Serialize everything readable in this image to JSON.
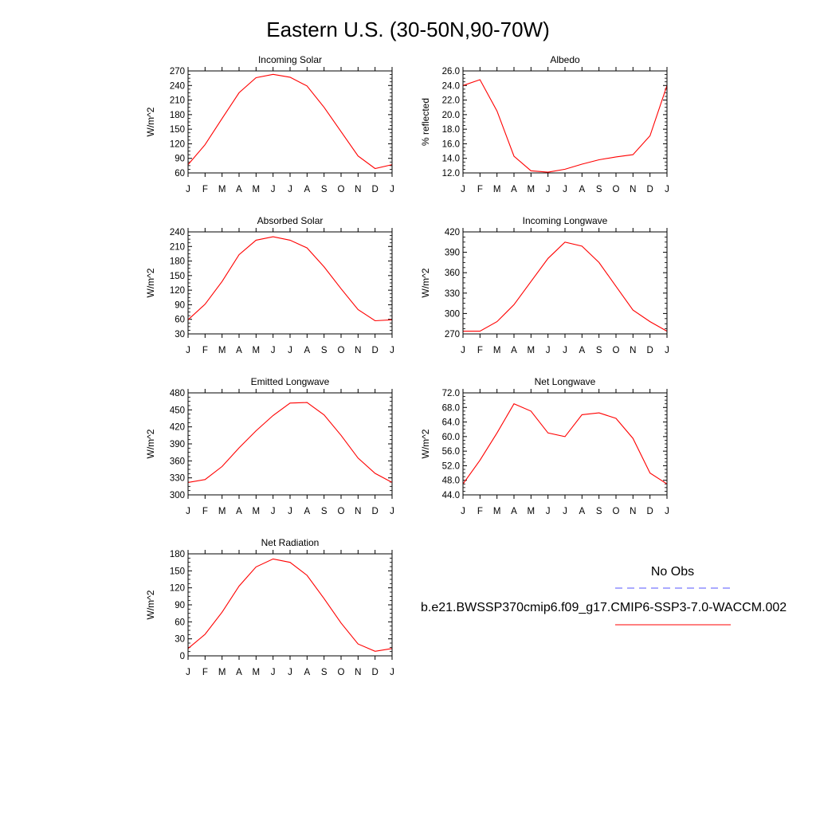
{
  "title": "Eastern U.S. (30-50N,90-70W)",
  "colors": {
    "model": "#ff0000",
    "obs": "#5555ff",
    "frame": "#000000"
  },
  "legend": {
    "obs_label": "No Obs",
    "model_label": "b.e21.BWSSP370cmip6.f09_g17.CMIP6-SSP3-7.0-WACCM.002"
  },
  "chart_data": [
    {
      "type": "line",
      "title": "Incoming Solar",
      "xlabel": "",
      "ylabel": "W/m^2",
      "categories": [
        "J",
        "F",
        "M",
        "A",
        "M",
        "J",
        "J",
        "A",
        "S",
        "O",
        "N",
        "D",
        "J"
      ],
      "ylim": [
        60,
        270
      ],
      "yticks": [
        "60",
        "90",
        "120",
        "150",
        "180",
        "210",
        "240",
        "270"
      ],
      "series": [
        {
          "values": [
            77,
            118,
            172,
            225,
            256,
            263,
            257,
            239,
            195,
            145,
            95,
            69,
            77
          ]
        }
      ]
    },
    {
      "type": "line",
      "title": "Albedo",
      "xlabel": "",
      "ylabel": "% reflected",
      "categories": [
        "J",
        "F",
        "M",
        "A",
        "M",
        "J",
        "J",
        "A",
        "S",
        "O",
        "N",
        "D",
        "J"
      ],
      "ylim": [
        12,
        26
      ],
      "yticks": [
        "12.0",
        "14.0",
        "16.0",
        "18.0",
        "20.0",
        "22.0",
        "24.0",
        "26.0"
      ],
      "series": [
        {
          "values": [
            24.0,
            24.8,
            20.5,
            14.3,
            12.3,
            12.1,
            12.5,
            13.2,
            13.8,
            14.2,
            14.5,
            17.1,
            24.0
          ]
        }
      ]
    },
    {
      "type": "line",
      "title": "Absorbed Solar",
      "xlabel": "",
      "ylabel": "W/m^2",
      "categories": [
        "J",
        "F",
        "M",
        "A",
        "M",
        "J",
        "J",
        "A",
        "S",
        "O",
        "N",
        "D",
        "J"
      ],
      "ylim": [
        30,
        240
      ],
      "yticks": [
        "30",
        "60",
        "90",
        "120",
        "150",
        "180",
        "210",
        "240"
      ],
      "series": [
        {
          "values": [
            59,
            91,
            138,
            193,
            223,
            230,
            223,
            207,
            168,
            123,
            80,
            57,
            59
          ]
        }
      ]
    },
    {
      "type": "line",
      "title": "Incoming Longwave",
      "xlabel": "",
      "ylabel": "W/m^2",
      "categories": [
        "J",
        "F",
        "M",
        "A",
        "M",
        "J",
        "J",
        "A",
        "S",
        "O",
        "N",
        "D",
        "J"
      ],
      "ylim": [
        270,
        420
      ],
      "yticks": [
        "270",
        "300",
        "330",
        "360",
        "390",
        "420"
      ],
      "series": [
        {
          "values": [
            274,
            274,
            288,
            313,
            347,
            381,
            405,
            399,
            375,
            340,
            305,
            288,
            274
          ]
        }
      ]
    },
    {
      "type": "line",
      "title": "Emitted Longwave",
      "xlabel": "",
      "ylabel": "W/m^2",
      "categories": [
        "J",
        "F",
        "M",
        "A",
        "M",
        "J",
        "J",
        "A",
        "S",
        "O",
        "N",
        "D",
        "J"
      ],
      "ylim": [
        300,
        480
      ],
      "yticks": [
        "300",
        "330",
        "360",
        "390",
        "420",
        "450",
        "480"
      ],
      "series": [
        {
          "values": [
            322,
            327,
            350,
            383,
            413,
            440,
            462,
            463,
            441,
            405,
            365,
            338,
            322
          ]
        }
      ]
    },
    {
      "type": "line",
      "title": "Net Longwave",
      "xlabel": "",
      "ylabel": "W/m^2",
      "categories": [
        "J",
        "F",
        "M",
        "A",
        "M",
        "J",
        "J",
        "A",
        "S",
        "O",
        "N",
        "D",
        "J"
      ],
      "ylim": [
        44,
        72
      ],
      "yticks": [
        "44.0",
        "48.0",
        "52.0",
        "56.0",
        "60.0",
        "64.0",
        "68.0",
        "72.0"
      ],
      "series": [
        {
          "values": [
            47.0,
            53.5,
            61.0,
            69.0,
            67.0,
            61.0,
            60.0,
            66.0,
            66.5,
            65.0,
            59.5,
            50.0,
            47.0
          ]
        }
      ]
    },
    {
      "type": "line",
      "title": "Net Radiation",
      "xlabel": "",
      "ylabel": "W/m^2",
      "categories": [
        "J",
        "F",
        "M",
        "A",
        "M",
        "J",
        "J",
        "A",
        "S",
        "O",
        "N",
        "D",
        "J"
      ],
      "ylim": [
        0,
        180
      ],
      "yticks": [
        "0",
        "30",
        "60",
        "90",
        "120",
        "150",
        "180"
      ],
      "series": [
        {
          "values": [
            13,
            38,
            77,
            123,
            157,
            171,
            165,
            142,
            101,
            58,
            21,
            8,
            13
          ]
        }
      ]
    }
  ]
}
